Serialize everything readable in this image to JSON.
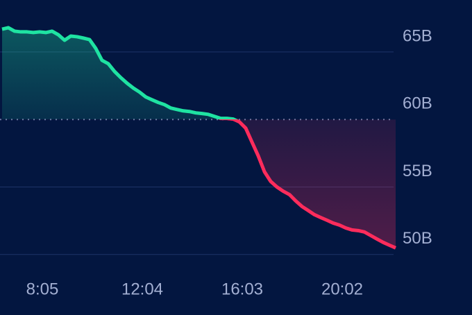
{
  "chart_data": {
    "type": "line",
    "categories": [
      null,
      null,
      null,
      null,
      null,
      null,
      "8:05",
      null,
      null,
      null,
      null,
      null,
      null,
      null,
      null,
      null,
      null,
      null,
      null,
      null,
      null,
      null,
      "12:04",
      null,
      null,
      null,
      null,
      null,
      null,
      null,
      null,
      null,
      null,
      null,
      null,
      null,
      null,
      null,
      "16:03",
      null,
      null,
      null,
      null,
      null,
      null,
      null,
      null,
      null,
      null,
      null,
      null,
      null,
      null,
      null,
      "20:02",
      null,
      null,
      null,
      null,
      null,
      null,
      null,
      null,
      null
    ],
    "values": [
      66.69,
      66.8,
      66.54,
      66.49,
      66.49,
      66.44,
      66.49,
      66.44,
      66.54,
      66.28,
      65.87,
      66.18,
      66.13,
      66.03,
      65.92,
      65.26,
      64.38,
      64.13,
      63.56,
      63.1,
      62.69,
      62.33,
      62.03,
      61.67,
      61.46,
      61.26,
      61.1,
      60.85,
      60.74,
      60.64,
      60.59,
      60.49,
      60.44,
      60.38,
      60.23,
      60.08,
      60.08,
      60.03,
      59.82,
      59.36,
      58.33,
      57.31,
      56.13,
      55.41,
      55.0,
      54.69,
      54.44,
      53.97,
      53.56,
      53.26,
      52.95,
      52.74,
      52.54,
      52.33,
      52.18,
      51.97,
      51.82,
      51.77,
      51.67,
      51.41,
      51.15,
      50.9,
      50.69,
      50.49
    ],
    "baseline": 60,
    "color_above": "#1fe3a2",
    "color_below": "#ff2c5c",
    "ylim": [
      48.5,
      67
    ],
    "yticks": [
      {
        "value": 50,
        "label": "50B"
      },
      {
        "value": 55,
        "label": "55B"
      },
      {
        "value": 60,
        "label": "60B"
      },
      {
        "value": 65,
        "label": "65B"
      }
    ],
    "grid": true,
    "y_axis_side": "right"
  }
}
